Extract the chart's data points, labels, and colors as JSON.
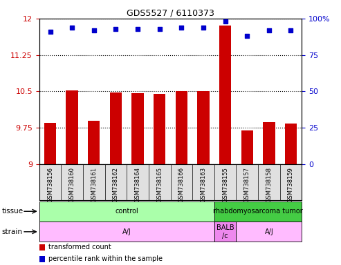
{
  "title": "GDS5527 / 6110373",
  "samples": [
    "GSM738156",
    "GSM738160",
    "GSM738161",
    "GSM738162",
    "GSM738164",
    "GSM738165",
    "GSM738166",
    "GSM738163",
    "GSM738155",
    "GSM738157",
    "GSM738158",
    "GSM738159"
  ],
  "bar_values": [
    9.85,
    10.52,
    9.9,
    10.48,
    10.47,
    10.45,
    10.5,
    10.51,
    11.85,
    9.7,
    9.87,
    9.84
  ],
  "dot_values": [
    91,
    94,
    92,
    93,
    93,
    93,
    94,
    94,
    98,
    88,
    92,
    92
  ],
  "ylim": [
    9.0,
    12.0
  ],
  "yticks": [
    9.0,
    9.75,
    10.5,
    11.25,
    12.0
  ],
  "ytick_labels": [
    "9",
    "9.75",
    "10.5",
    "11.25",
    "12"
  ],
  "y2lim": [
    0,
    100
  ],
  "y2ticks": [
    0,
    25,
    50,
    75,
    100
  ],
  "y2tick_labels": [
    "0",
    "25",
    "50",
    "75",
    "100%"
  ],
  "bar_color": "#cc0000",
  "dot_color": "#0000cc",
  "tissue_labels": [
    {
      "text": "control",
      "start": 0,
      "end": 8,
      "color": "#aaffaa"
    },
    {
      "text": "rhabdomyosarcoma tumor",
      "start": 8,
      "end": 12,
      "color": "#44cc44"
    }
  ],
  "strain_labels": [
    {
      "text": "A/J",
      "start": 0,
      "end": 8,
      "color": "#ffbbff"
    },
    {
      "text": "BALB\n/c",
      "start": 8,
      "end": 9,
      "color": "#ee88ee"
    },
    {
      "text": "A/J",
      "start": 9,
      "end": 12,
      "color": "#ffbbff"
    }
  ],
  "tissue_row_label": "tissue",
  "strain_row_label": "strain",
  "legend_items": [
    {
      "label": "transformed count",
      "color": "#cc0000"
    },
    {
      "label": "percentile rank within the sample",
      "color": "#0000cc"
    }
  ],
  "grid_color": "#000000",
  "bg_color": "#ffffff"
}
